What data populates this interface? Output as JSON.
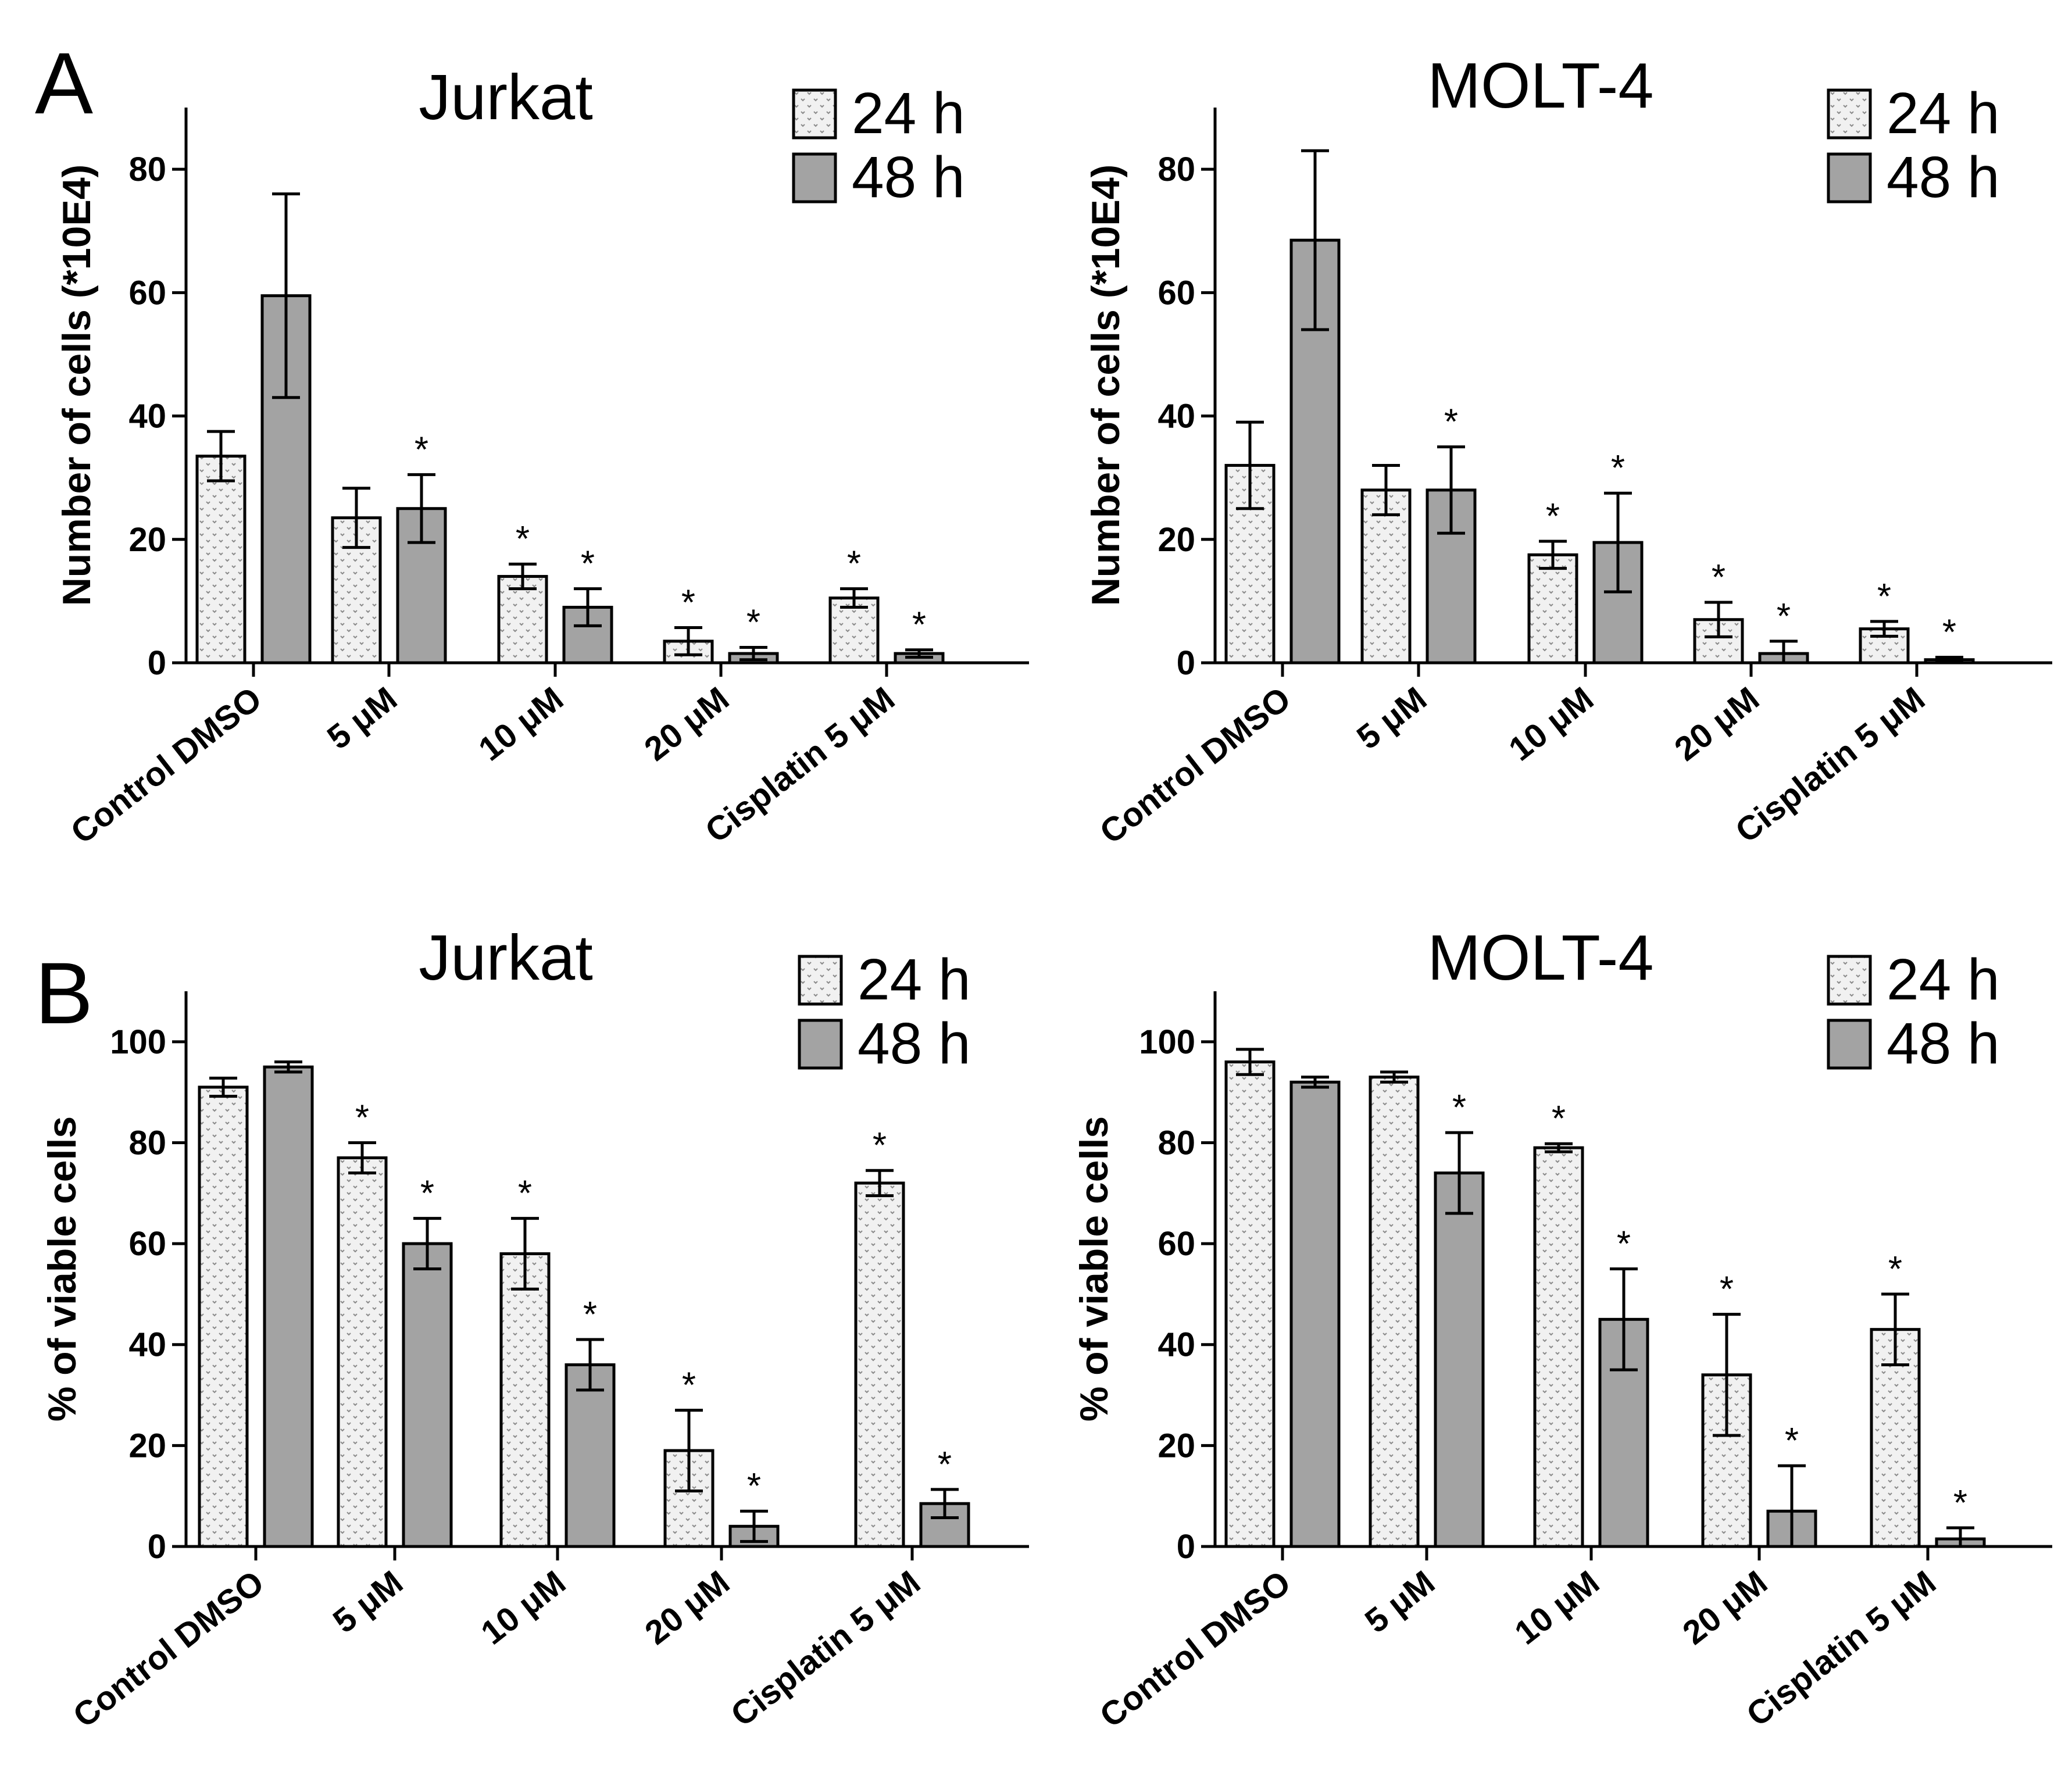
{
  "panel_labels": [
    "A",
    "B"
  ],
  "chart_data": [
    {
      "type": "bar",
      "panel": "A",
      "title": "Jurkat",
      "ylabel": "Number of cells (*10E4)",
      "xlabel": "",
      "ylim": [
        0,
        90
      ],
      "yticks": [
        0,
        20,
        40,
        60,
        80
      ],
      "categories": [
        "Control DMSO",
        "5 μM",
        "10 μM",
        "20 μM",
        "Cisplatin 5 μM"
      ],
      "series": [
        {
          "name": "24 h",
          "values": [
            33.5,
            23.5,
            14,
            3.5,
            10.5
          ],
          "errors": [
            4,
            4.8,
            2,
            2.2,
            1.5
          ],
          "significant": [
            false,
            false,
            true,
            true,
            true
          ]
        },
        {
          "name": "48 h",
          "values": [
            59.5,
            25,
            9,
            1.5,
            1.5
          ],
          "errors": [
            16.5,
            5.5,
            3,
            1,
            0.6
          ],
          "significant": [
            false,
            true,
            true,
            true,
            true
          ]
        }
      ]
    },
    {
      "type": "bar",
      "panel": "A",
      "title": "MOLT-4",
      "ylabel": "Number of cells (*10E4)",
      "xlabel": "",
      "ylim": [
        0,
        90
      ],
      "yticks": [
        0,
        20,
        40,
        60,
        80
      ],
      "categories": [
        "Control DMSO",
        "5 μM",
        "10 μM",
        "20 μM",
        "Cisplatin 5 μM"
      ],
      "series": [
        {
          "name": "24 h",
          "values": [
            32,
            28,
            17.5,
            7,
            5.5
          ],
          "errors": [
            7,
            4,
            2.2,
            2.8,
            1.2
          ],
          "significant": [
            false,
            false,
            true,
            true,
            true
          ]
        },
        {
          "name": "48 h",
          "values": [
            68.5,
            28,
            19.5,
            1.5,
            0.5
          ],
          "errors": [
            14.5,
            7,
            8,
            2,
            0.4
          ],
          "significant": [
            false,
            true,
            true,
            true,
            true
          ]
        }
      ]
    },
    {
      "type": "bar",
      "panel": "B",
      "title": "Jurkat",
      "ylabel": "% of viable cells",
      "xlabel": "",
      "ylim": [
        0,
        110
      ],
      "yticks": [
        0,
        20,
        40,
        60,
        80,
        100
      ],
      "categories": [
        "Control DMSO",
        "5 μM",
        "10 μM",
        "20 μM",
        "Cisplatin 5 μM"
      ],
      "series": [
        {
          "name": "24 h",
          "values": [
            91,
            77,
            58,
            19,
            72
          ],
          "errors": [
            1.8,
            3,
            7,
            8,
            2.5
          ],
          "significant": [
            false,
            true,
            true,
            true,
            true
          ]
        },
        {
          "name": "48 h",
          "values": [
            95,
            60,
            36,
            4,
            8.5
          ],
          "errors": [
            1,
            5,
            5,
            3,
            2.8
          ],
          "significant": [
            false,
            true,
            true,
            true,
            true
          ]
        }
      ]
    },
    {
      "type": "bar",
      "panel": "B",
      "title": "MOLT-4",
      "ylabel": "% of viable cells",
      "xlabel": "",
      "ylim": [
        0,
        110
      ],
      "yticks": [
        0,
        20,
        40,
        60,
        80,
        100
      ],
      "categories": [
        "Control DMSO",
        "5 μM",
        "10 μM",
        "20 μM",
        "Cisplatin 5 μM"
      ],
      "series": [
        {
          "name": "24 h",
          "values": [
            96,
            93,
            79,
            34,
            43
          ],
          "errors": [
            2.5,
            1,
            0.8,
            12,
            7
          ],
          "significant": [
            false,
            false,
            true,
            true,
            true
          ]
        },
        {
          "name": "48 h",
          "values": [
            92,
            74,
            45,
            7,
            1.5
          ],
          "errors": [
            1,
            8,
            10,
            9,
            2.2
          ],
          "significant": [
            false,
            true,
            true,
            true,
            true
          ]
        }
      ]
    }
  ],
  "significance_marker": "*",
  "colors": {
    "bar_24h": "#f1f1f1",
    "bar_48h": "#a3a3a3",
    "dots_24h": "#8a8a8a",
    "stroke": "#000000"
  }
}
